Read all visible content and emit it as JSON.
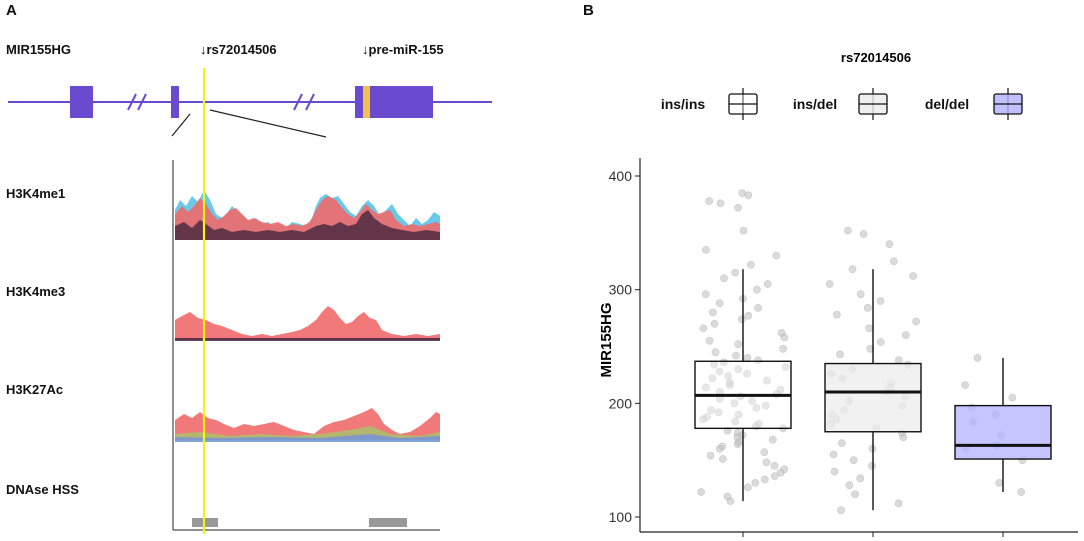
{
  "panel_a": {
    "letter": "A",
    "gene_label": "MIR155HG",
    "snp_label": "rs72014506",
    "mirna_label": "pre-miR-155",
    "arrow_glyph": "↓",
    "tracks": [
      "H3K4me1",
      "H3K4me3",
      "H3K27Ac",
      "DNAse HSS"
    ],
    "colors": {
      "gene": "#6a4bd0",
      "exon": "#6a4bd0",
      "mirna": "#f5c04a",
      "highlight": "#f2f21c",
      "signal_red": "#f06a6a",
      "signal_blue": "#4fc0e8",
      "signal_dark": "#3a1f3a",
      "dnase": "#999999"
    }
  },
  "panel_b": {
    "letter": "B"
  },
  "chart_data": {
    "type": "boxplot",
    "title": "rs72014506",
    "xlabel": "",
    "ylabel": "MIR155HG",
    "ylim": [
      100,
      410
    ],
    "yticks": [
      100,
      200,
      300,
      400
    ],
    "categories": [
      "ins/ins",
      "ins/del",
      "del/del"
    ],
    "legend_labels": [
      "ins/ins",
      "ins/del",
      "del/del"
    ],
    "box_fill": [
      "#ffffff",
      "#ececec",
      "#b2b2ff"
    ],
    "boxes": [
      {
        "name": "ins/ins",
        "min": 114,
        "q1": 178,
        "median": 207,
        "q3": 237,
        "max": 318
      },
      {
        "name": "ins/del",
        "min": 106,
        "q1": 175,
        "median": 210,
        "q3": 235,
        "max": 318
      },
      {
        "name": "del/del",
        "min": 122,
        "q1": 151,
        "median": 163,
        "q3": 198,
        "max": 240
      }
    ],
    "points": {
      "ins/ins": [
        385,
        383,
        378,
        376,
        372,
        352,
        335,
        330,
        322,
        315,
        310,
        305,
        300,
        296,
        292,
        288,
        284,
        280,
        277,
        274,
        270,
        266,
        262,
        258,
        255,
        252,
        248,
        245,
        242,
        240,
        238,
        236,
        234,
        232,
        230,
        228,
        226,
        224,
        222,
        220,
        218,
        216,
        214,
        212,
        210,
        208,
        206,
        204,
        202,
        200,
        198,
        196,
        194,
        192,
        190,
        188,
        186,
        184,
        182,
        180,
        178,
        176,
        174,
        172,
        170,
        168,
        166,
        164,
        162,
        160,
        157,
        154,
        151,
        148,
        145,
        142,
        139,
        136,
        133,
        130,
        126,
        122,
        118,
        114
      ],
      "ins/del": [
        352,
        349,
        340,
        325,
        318,
        312,
        305,
        296,
        290,
        284,
        278,
        272,
        266,
        260,
        254,
        248,
        243,
        238,
        234,
        230,
        226,
        222,
        218,
        214,
        210,
        206,
        202,
        198,
        194,
        190,
        186,
        182,
        178,
        174,
        170,
        165,
        160,
        155,
        150,
        145,
        140,
        134,
        128,
        120,
        112,
        106
      ],
      "del/del": [
        240,
        216,
        205,
        196,
        190,
        184,
        172,
        163,
        160,
        150,
        130,
        122
      ]
    }
  }
}
